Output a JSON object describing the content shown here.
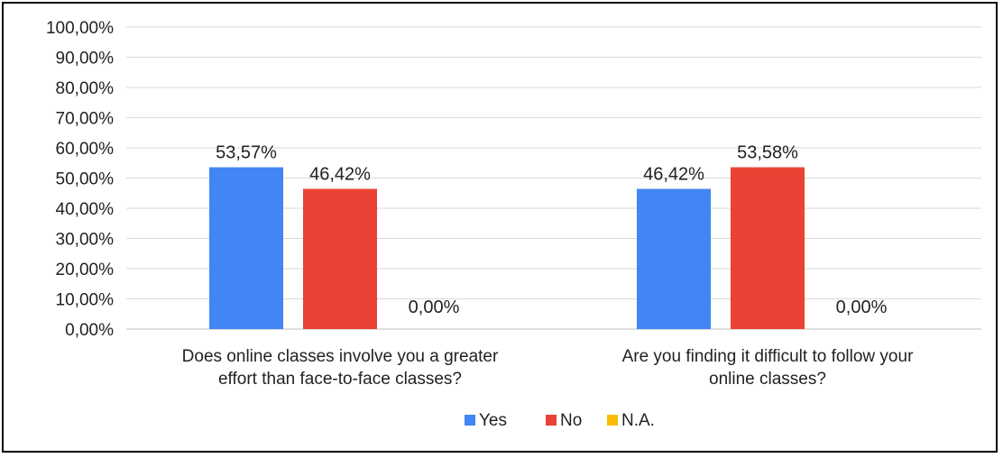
{
  "chart_data": {
    "type": "bar",
    "categories": [
      [
        "Does online classes involve you a greater",
        "effort than face-to-face classes?"
      ],
      [
        "Are you finding it difficult to follow your",
        "online classes?"
      ]
    ],
    "series": [
      {
        "name": "Yes",
        "color": "#4285f4",
        "values": [
          53.57,
          46.42
        ],
        "labels": [
          "53,57%",
          "46,42%"
        ]
      },
      {
        "name": "No",
        "color": "#ea4335",
        "values": [
          46.42,
          53.58
        ],
        "labels": [
          "46,42%",
          "53,58%"
        ]
      },
      {
        "name": "N.A.",
        "color": "#fbbc04",
        "values": [
          0,
          0
        ],
        "labels": [
          "0,00%",
          "0,00%"
        ]
      }
    ],
    "y_ticks": [
      "0,00%",
      "10,00%",
      "20,00%",
      "30,00%",
      "40,00%",
      "50,00%",
      "60,00%",
      "70,00%",
      "80,00%",
      "90,00%",
      "100,00%"
    ],
    "ylim": [
      0,
      100
    ],
    "grid": true,
    "legend_position": "bottom",
    "title": "",
    "xlabel": "",
    "ylabel": ""
  }
}
